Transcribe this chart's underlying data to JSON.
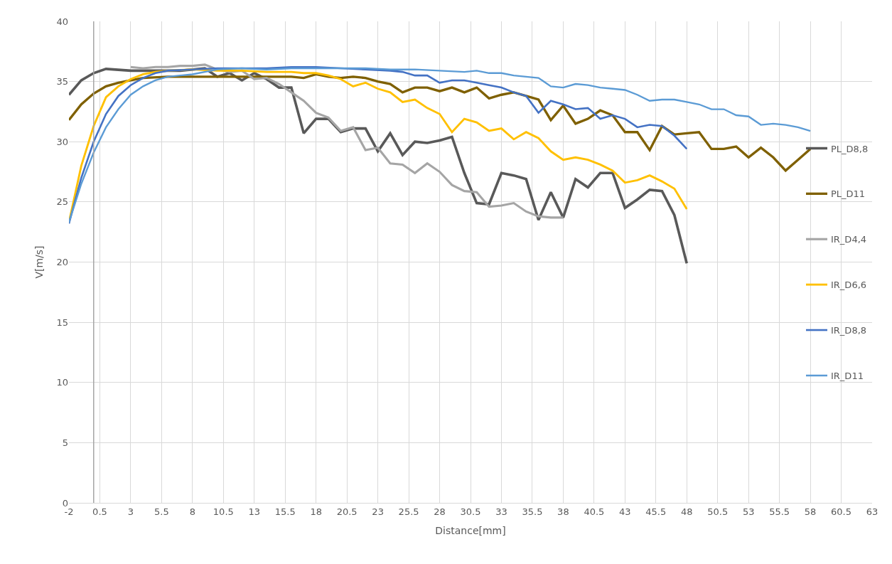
{
  "chart_data": {
    "type": "line",
    "xlabel": "Distance[mm]",
    "ylabel": "V[m/s]",
    "xlim": [
      -2,
      63
    ],
    "xticks": [
      -2,
      0.5,
      3,
      5.5,
      8,
      10.5,
      13,
      15.5,
      18,
      20.5,
      23,
      25.5,
      28,
      30.5,
      33,
      35.5,
      38,
      40.5,
      43,
      45.5,
      48,
      50.5,
      53,
      55.5,
      58,
      60.5,
      63
    ],
    "ylim": [
      0,
      40
    ],
    "yticks": [
      0,
      5,
      10,
      15,
      20,
      25,
      30,
      35,
      40
    ],
    "grid": true,
    "legend": "right",
    "marker": "none",
    "line_style": "solid",
    "ref_lines": [
      {
        "axis": "x",
        "value": 0,
        "color": "#a6a6a6"
      }
    ],
    "series": [
      {
        "name": "PL_D8,8",
        "color": "#595959",
        "x": [
          -2,
          -1,
          0,
          1,
          3,
          5,
          7,
          9,
          10,
          11,
          12,
          13,
          14,
          15,
          16,
          17,
          18,
          19,
          20,
          21,
          22,
          23,
          24,
          25,
          26,
          27,
          28,
          29,
          30,
          31,
          32,
          33,
          34,
          35,
          36,
          37,
          38,
          39,
          40,
          41,
          42,
          43,
          44,
          45,
          46,
          47,
          48
        ],
        "values": [
          33.9,
          35.1,
          35.7,
          36.05,
          35.9,
          35.9,
          35.9,
          36.1,
          35.4,
          35.7,
          35.1,
          35.7,
          35.2,
          34.5,
          34.5,
          30.7,
          31.9,
          31.9,
          30.8,
          31.1,
          31.1,
          29.2,
          30.7,
          28.9,
          30.0,
          29.9,
          30.1,
          30.4,
          27.4,
          24.9,
          24.8,
          27.4,
          27.2,
          26.9,
          23.5,
          25.8,
          23.7,
          26.9,
          26.2,
          27.4,
          27.4,
          24.5,
          25.2,
          26.0,
          25.9,
          23.9,
          19.9
        ]
      },
      {
        "name": "PL_D11",
        "color": "#7f6000",
        "x": [
          -2,
          -1,
          0,
          1,
          2,
          3,
          4,
          6,
          8,
          10,
          12,
          14,
          16,
          17,
          18,
          19,
          20,
          21,
          22,
          23,
          24,
          25,
          26,
          27,
          28,
          29,
          30,
          31,
          32,
          33,
          34,
          35,
          36,
          37,
          38,
          39,
          40,
          41,
          42,
          43,
          44,
          45,
          46,
          47,
          48,
          49,
          50,
          51,
          52,
          53,
          54,
          55,
          56,
          57,
          58
        ],
        "values": [
          31.8,
          33.1,
          34.0,
          34.6,
          34.9,
          35.1,
          35.3,
          35.4,
          35.4,
          35.4,
          35.4,
          35.4,
          35.4,
          35.3,
          35.6,
          35.4,
          35.3,
          35.4,
          35.3,
          35.0,
          34.8,
          34.1,
          34.5,
          34.5,
          34.2,
          34.5,
          34.1,
          34.5,
          33.6,
          33.9,
          34.1,
          33.8,
          33.5,
          31.8,
          33.0,
          31.5,
          31.9,
          32.6,
          32.2,
          30.8,
          30.8,
          29.3,
          31.3,
          30.6,
          30.7,
          30.8,
          29.4,
          29.4,
          29.6,
          28.7,
          29.5,
          28.7,
          27.6,
          28.5,
          29.4
        ]
      },
      {
        "name": "IR_D4,4",
        "color": "#a5a5a5",
        "x": [
          3,
          4,
          5,
          6,
          7,
          8,
          9,
          10,
          11,
          12,
          13,
          14,
          15,
          16,
          17,
          18,
          19,
          20,
          21,
          22,
          23,
          24,
          25,
          26,
          27,
          28,
          29,
          30,
          31,
          32,
          33,
          34,
          35,
          36,
          37,
          38
        ],
        "values": [
          36.2,
          36.1,
          36.2,
          36.2,
          36.3,
          36.3,
          36.4,
          36.0,
          35.8,
          35.9,
          35.2,
          35.3,
          34.8,
          34.1,
          33.4,
          32.4,
          32.0,
          30.9,
          31.2,
          29.3,
          29.5,
          28.2,
          28.1,
          27.4,
          28.2,
          27.5,
          26.4,
          25.9,
          25.8,
          24.6,
          24.7,
          24.9,
          24.2,
          23.8,
          23.7,
          23.7
        ]
      },
      {
        "name": "IR_D6,6",
        "color": "#ffc000",
        "x": [
          -2,
          -1,
          0,
          1,
          2,
          3,
          4,
          5,
          6,
          8,
          10,
          12,
          14,
          16,
          17,
          18,
          19,
          20,
          21,
          22,
          23,
          24,
          25,
          26,
          27,
          28,
          29,
          30,
          31,
          32,
          33,
          34,
          35,
          36,
          37,
          38,
          39,
          40,
          41,
          42,
          43,
          44,
          45,
          46,
          47,
          48
        ],
        "values": [
          23.3,
          28.0,
          31.3,
          33.7,
          34.6,
          35.2,
          35.6,
          35.8,
          35.9,
          36.0,
          35.9,
          35.9,
          35.8,
          35.8,
          35.7,
          35.7,
          35.5,
          35.2,
          34.6,
          34.9,
          34.4,
          34.1,
          33.3,
          33.5,
          32.8,
          32.3,
          30.8,
          31.9,
          31.6,
          30.9,
          31.1,
          30.2,
          30.8,
          30.3,
          29.2,
          28.5,
          28.7,
          28.5,
          28.1,
          27.6,
          26.6,
          26.8,
          27.2,
          26.7,
          26.1,
          24.4
        ]
      },
      {
        "name": "IR_D8,8",
        "color": "#4472c4",
        "x": [
          -2,
          -1,
          0,
          1,
          2,
          3,
          4,
          5,
          6,
          8,
          10,
          12,
          14,
          16,
          18,
          20,
          22,
          24,
          25,
          26,
          27,
          28,
          29,
          30,
          31,
          32,
          33,
          34,
          35,
          36,
          37,
          38,
          39,
          40,
          41,
          42,
          43,
          44,
          45,
          46,
          47,
          48
        ],
        "values": [
          23.2,
          27.0,
          30.0,
          32.3,
          33.8,
          34.7,
          35.3,
          35.7,
          35.9,
          36.0,
          36.1,
          36.1,
          36.1,
          36.2,
          36.2,
          36.1,
          36.0,
          35.9,
          35.8,
          35.5,
          35.5,
          34.9,
          35.1,
          35.1,
          34.9,
          34.7,
          34.5,
          34.1,
          33.8,
          32.4,
          33.4,
          33.1,
          32.7,
          32.8,
          31.9,
          32.2,
          31.9,
          31.2,
          31.4,
          31.3,
          30.5,
          29.4
        ]
      },
      {
        "name": "IR_D11",
        "color": "#5b9bd5",
        "x": [
          -2,
          -1,
          0,
          1,
          2,
          3,
          4,
          5,
          6,
          7,
          8,
          10,
          12,
          14,
          16,
          18,
          20,
          22,
          24,
          26,
          28,
          30,
          31,
          32,
          33,
          34,
          35,
          36,
          37,
          38,
          39,
          40,
          41,
          42,
          43,
          44,
          45,
          46,
          47,
          48,
          49,
          50,
          51,
          52,
          53,
          54,
          55,
          56,
          57,
          58
        ],
        "values": [
          23.3,
          26.5,
          29.1,
          31.2,
          32.7,
          33.9,
          34.6,
          35.1,
          35.4,
          35.5,
          35.6,
          36.0,
          36.1,
          36.0,
          36.1,
          36.1,
          36.1,
          36.1,
          36.0,
          36.0,
          35.9,
          35.8,
          35.9,
          35.7,
          35.7,
          35.5,
          35.4,
          35.3,
          34.6,
          34.5,
          34.8,
          34.7,
          34.5,
          34.4,
          34.3,
          33.9,
          33.4,
          33.5,
          33.5,
          33.3,
          33.1,
          32.7,
          32.7,
          32.2,
          32.1,
          31.4,
          31.5,
          31.4,
          31.2,
          30.9
        ]
      }
    ]
  }
}
